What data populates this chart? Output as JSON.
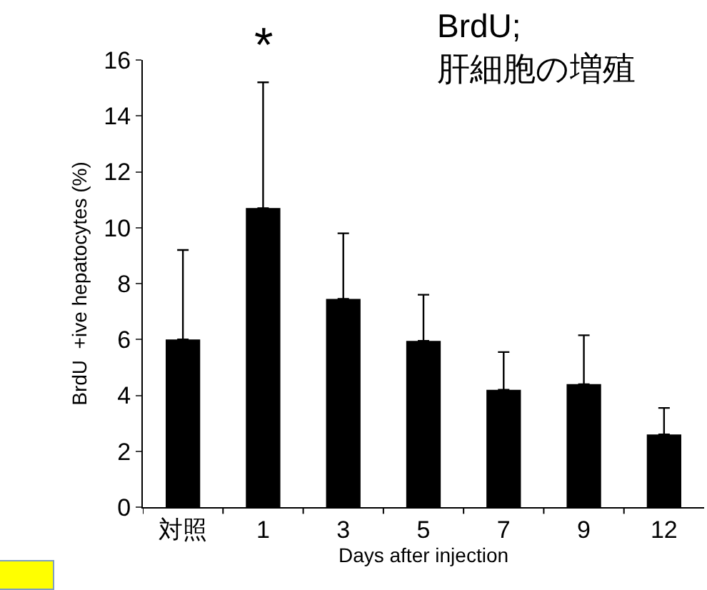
{
  "chart_data": {
    "type": "bar",
    "title": "BrdU;\n肝細胞の増殖",
    "xlabel": "Days after injection",
    "ylabel": "BrdU  +ive hepatocytes (%)",
    "categories": [
      "対照",
      "1",
      "3",
      "5",
      "7",
      "9",
      "12"
    ],
    "values": [
      6.0,
      10.7,
      7.45,
      5.95,
      4.2,
      4.4,
      2.6
    ],
    "errors": [
      [
        6.0,
        9.2
      ],
      [
        10.7,
        15.2
      ],
      [
        7.45,
        9.8
      ],
      [
        5.95,
        7.6
      ],
      [
        4.2,
        5.55
      ],
      [
        4.4,
        6.15
      ],
      [
        2.6,
        3.55
      ]
    ],
    "color": "#000000",
    "ylim": [
      0,
      16
    ],
    "yticks": [
      0,
      2,
      4,
      6,
      8,
      10,
      12,
      14,
      16
    ],
    "annotations": [
      {
        "text": "*",
        "x": "1",
        "y": 15.2
      }
    ],
    "grid": false
  }
}
